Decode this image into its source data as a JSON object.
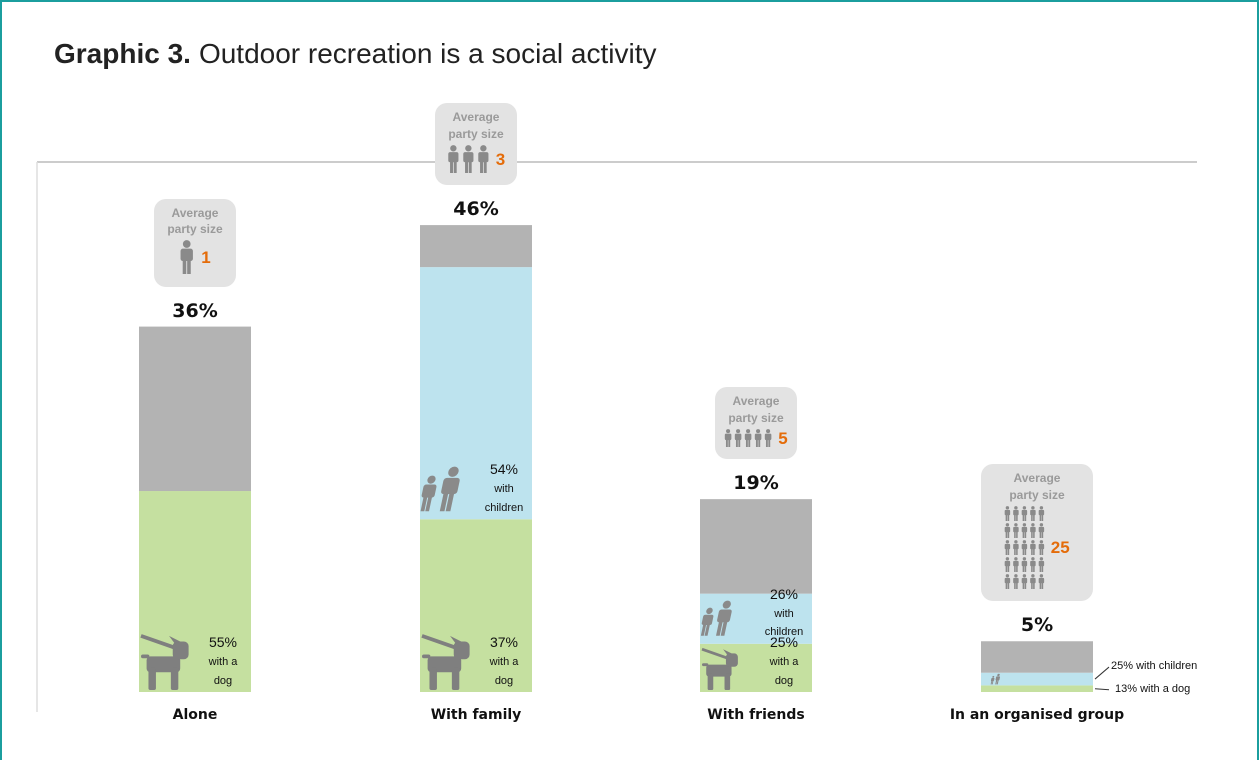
{
  "chart_data": {
    "type": "bar",
    "title_label": "Graphic 3.",
    "title": "Outdoor recreation is a social activity",
    "categories": [
      "Alone",
      "With family",
      "With friends",
      "In an organised group"
    ],
    "values": [
      36,
      46,
      19,
      5
    ],
    "value_labels": [
      "36%",
      "46%",
      "19%",
      "5%"
    ],
    "color": "#b3b3b3",
    "series": [
      {
        "name": "with a dog",
        "color": "#c5e0a0",
        "values": [
          55,
          37,
          25,
          13
        ],
        "value_labels": [
          "55%",
          "37%",
          "25%",
          "13%"
        ]
      },
      {
        "name": "with children",
        "color": "#bde3ee",
        "values": [
          null,
          54,
          26,
          25
        ],
        "value_labels": [
          null,
          "54%",
          "26%",
          "25%"
        ]
      }
    ],
    "party_size_label": "Average party size",
    "party_size": [
      1,
      3,
      5,
      25
    ]
  }
}
